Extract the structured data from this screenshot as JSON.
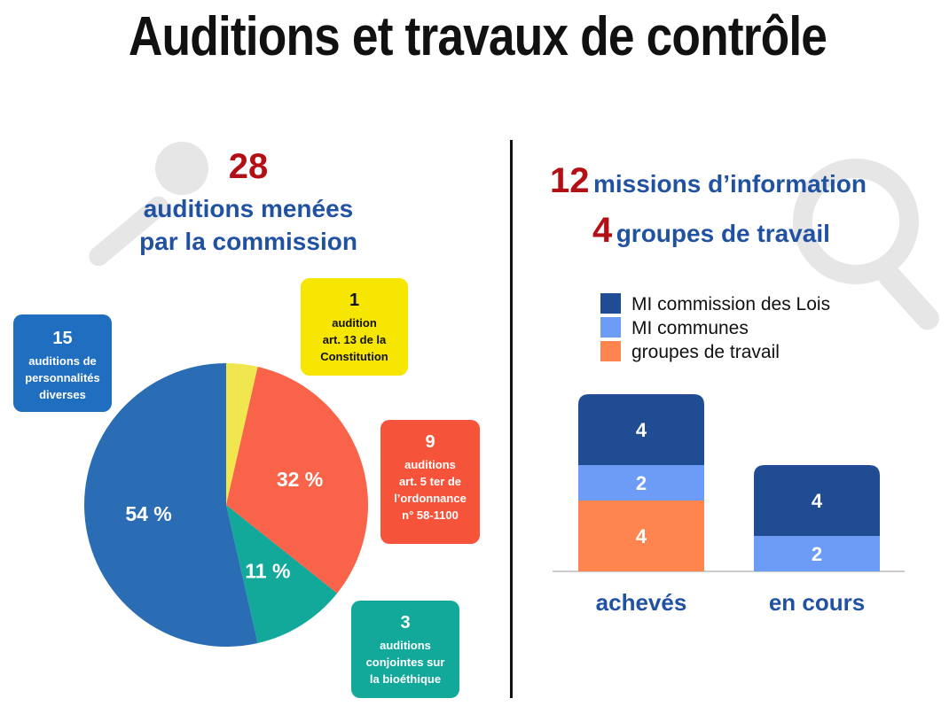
{
  "title": "Auditions et travaux de contrôle",
  "left": {
    "count": "28",
    "subtitle_line1": "auditions menées",
    "subtitle_line2": "par la commission",
    "callouts": {
      "personnalites": {
        "number": "15",
        "line1": "auditions de",
        "line2": "personnalités",
        "line3": "diverses",
        "color": "#1f6ebf"
      },
      "constitution": {
        "number": "1",
        "line1": "audition",
        "line2": "art. 13 de la",
        "line3": "Constitution",
        "color": "#f7e600"
      },
      "ordonnance": {
        "number": "9",
        "line1": "auditions",
        "line2": "art. 5 ter de",
        "line3": "l’ordonnance",
        "line4": "n° 58-1100",
        "color": "#f5543a"
      },
      "bioethique": {
        "number": "3",
        "line1": "auditions",
        "line2": "conjointes sur",
        "line3": "la bioéthique",
        "color": "#12a99a"
      }
    }
  },
  "right": {
    "missions_count": "12",
    "missions_label": "missions d’information",
    "groups_count": "4",
    "groups_label": "groupes de travail"
  },
  "chart_data": [
    {
      "type": "pie",
      "slices": [
        {
          "label": "art. 13 de la Constitution",
          "value": 1,
          "percent_label": "",
          "color": "#f2e64e"
        },
        {
          "label": "art. 5 ter de l’ordonnance n° 58-1100",
          "value": 9,
          "percent_label": "32 %",
          "color": "#f8634a"
        },
        {
          "label": "conjointes sur la bioéthique",
          "value": 3,
          "percent_label": "11 %",
          "color": "#12a99a"
        },
        {
          "label": "personnalités diverses",
          "value": 15,
          "percent_label": "54 %",
          "color": "#2a6db5"
        }
      ]
    },
    {
      "type": "bar",
      "stacked": true,
      "categories": [
        "achevés",
        "en cours"
      ],
      "series": [
        {
          "name": "groupes de travail",
          "values": [
            4,
            0
          ],
          "color": "#ff8550"
        },
        {
          "name": "MI communes",
          "values": [
            2,
            2
          ],
          "color": "#6d9cf7"
        },
        {
          "name": "MI commission des Lois",
          "values": [
            4,
            4
          ],
          "color": "#1f4c93"
        }
      ],
      "legend_order": [
        "MI commission des Lois",
        "MI communes",
        "groupes de travail"
      ]
    }
  ]
}
